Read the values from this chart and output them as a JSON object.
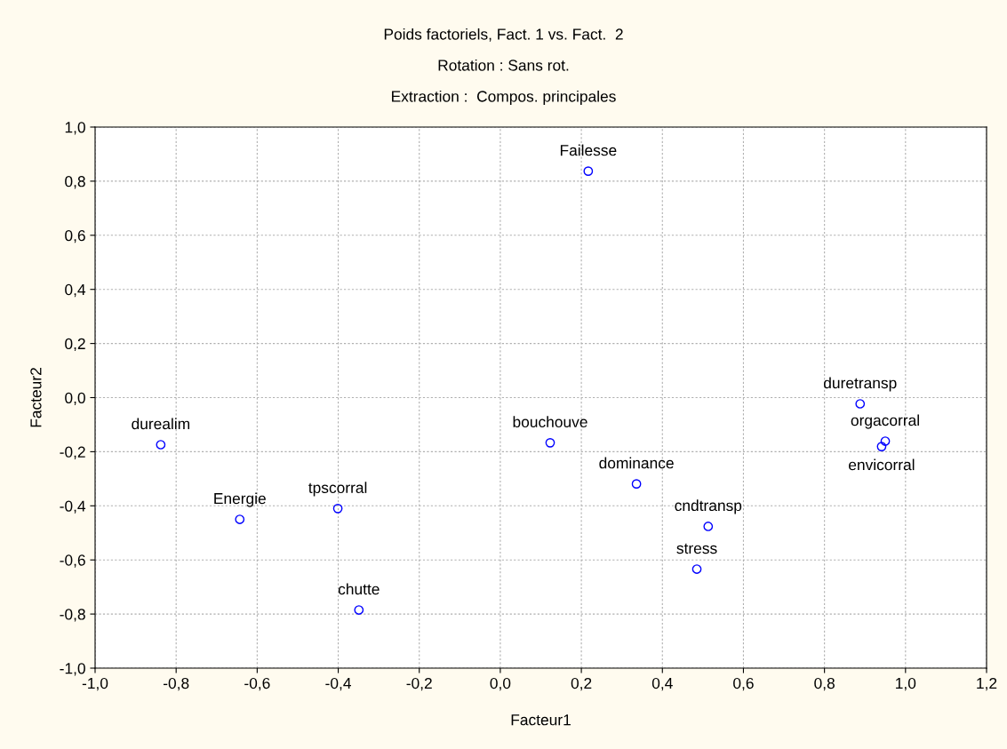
{
  "chart_data": {
    "type": "scatter",
    "title": "Poids factoriels, Fact. 1 vs. Fact.  2",
    "subtitle": "Rotation : Sans rot.\nExtraction :  Compos. principales",
    "xlabel": "Facteur1",
    "ylabel": "Facteur2",
    "x": [
      -0.838,
      -0.643,
      -0.401,
      -0.349,
      0.123,
      0.217,
      0.336,
      0.513,
      0.485,
      0.888,
      0.95,
      0.941
    ],
    "values": [
      -0.174,
      -0.45,
      -0.41,
      -0.785,
      -0.167,
      0.837,
      -0.319,
      -0.476,
      -0.634,
      -0.023,
      -0.161,
      -0.181
    ],
    "annotations": [
      {
        "text": "durealim",
        "x": -0.838,
        "y": -0.174
      },
      {
        "text": "Energie",
        "x": -0.643,
        "y": -0.45
      },
      {
        "text": "tpscorral",
        "x": -0.401,
        "y": -0.41
      },
      {
        "text": "chutte",
        "x": -0.349,
        "y": -0.785
      },
      {
        "text": "bouchouve",
        "x": 0.123,
        "y": -0.167
      },
      {
        "text": "Failesse",
        "x": 0.217,
        "y": 0.837
      },
      {
        "text": "dominance",
        "x": 0.336,
        "y": -0.319
      },
      {
        "text": "cndtransp",
        "x": 0.513,
        "y": -0.476
      },
      {
        "text": "stress",
        "x": 0.485,
        "y": -0.634
      },
      {
        "text": "duretransp",
        "x": 0.888,
        "y": -0.023
      },
      {
        "text": "orgacorral",
        "x": 0.95,
        "y": -0.161
      },
      {
        "text": "envicorral",
        "x": 0.941,
        "y": -0.181
      }
    ],
    "color": "#0000ff",
    "marker": "circle",
    "grid": true,
    "legend": false,
    "xlim": [
      -1.0,
      1.2
    ],
    "xticks": [
      {
        "value": -1.0,
        "label": "-1,0"
      },
      {
        "value": -0.8,
        "label": "-0,8"
      },
      {
        "value": -0.6,
        "label": "-0,6"
      },
      {
        "value": -0.4,
        "label": "-0,4"
      },
      {
        "value": -0.2,
        "label": "-0,2"
      },
      {
        "value": 0.0,
        "label": "0,0"
      },
      {
        "value": 0.2,
        "label": "0,2"
      },
      {
        "value": 0.4,
        "label": "0,4"
      },
      {
        "value": 0.6,
        "label": "0,6"
      },
      {
        "value": 0.8,
        "label": "0,8"
      },
      {
        "value": 1.0,
        "label": "1,0"
      },
      {
        "value": 1.2,
        "label": "1,2"
      }
    ],
    "ylim": [
      -1.0,
      1.0
    ],
    "yticks": [
      {
        "value": -1.0,
        "label": "-1,0"
      },
      {
        "value": -0.8,
        "label": "-0,8"
      },
      {
        "value": -0.6,
        "label": "-0,6"
      },
      {
        "value": -0.4,
        "label": "-0,4"
      },
      {
        "value": -0.2,
        "label": "-0,2"
      },
      {
        "value": 0.0,
        "label": "0,0"
      },
      {
        "value": 0.2,
        "label": "0,2"
      },
      {
        "value": 0.4,
        "label": "0,4"
      },
      {
        "value": 0.6,
        "label": "0,6"
      },
      {
        "value": 0.8,
        "label": "0,8"
      },
      {
        "value": 1.0,
        "label": "1,0"
      }
    ]
  }
}
